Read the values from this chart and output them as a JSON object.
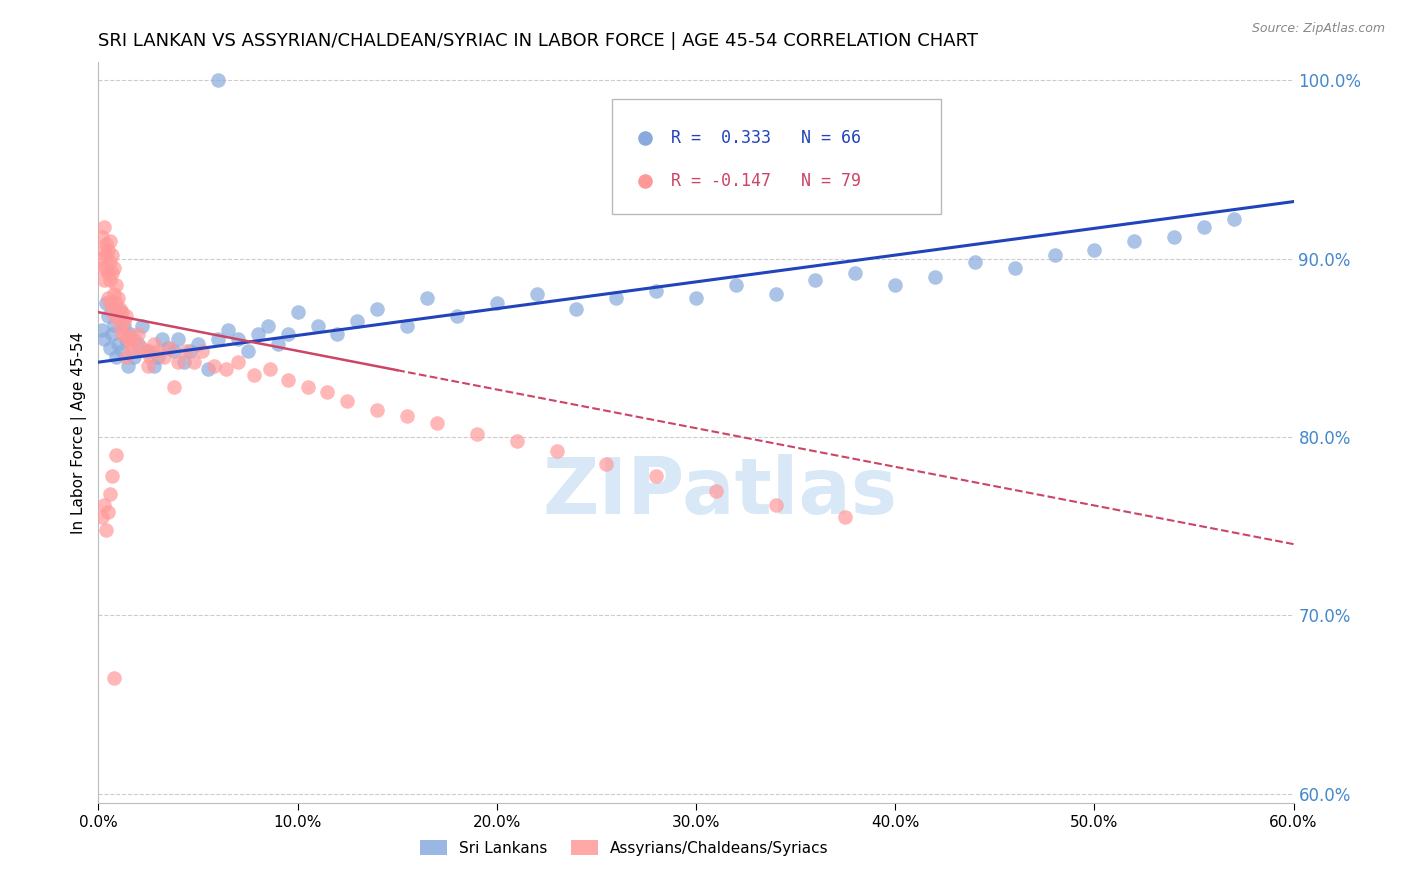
{
  "title": "SRI LANKAN VS ASSYRIAN/CHALDEAN/SYRIAC IN LABOR FORCE | AGE 45-54 CORRELATION CHART",
  "source": "Source: ZipAtlas.com",
  "ylabel": "In Labor Force | Age 45-54",
  "xlim": [
    0.0,
    0.6
  ],
  "ylim": [
    0.595,
    1.01
  ],
  "yticks_right": [
    0.6,
    0.7,
    0.8,
    0.9,
    1.0
  ],
  "legend_blue_r": "R =  0.333",
  "legend_blue_n": "N = 66",
  "legend_pink_r": "R = -0.147",
  "legend_pink_n": "N = 79",
  "label_sri": "Sri Lankans",
  "label_ass": "Assyrians/Chaldeans/Syriacs",
  "dot_color_blue": "#88AADD",
  "dot_color_pink": "#FF9999",
  "line_color_blue": "#2244BB",
  "line_color_pink": "#CC4466",
  "watermark": "ZIPatlas",
  "watermark_color": "#AACCEE",
  "title_fontsize": 13,
  "axis_label_fontsize": 11,
  "tick_fontsize": 11,
  "right_tick_color": "#4488CC",
  "grid_color": "#CCCCCC",
  "blue_scatter_x": [
    0.002,
    0.003,
    0.004,
    0.005,
    0.006,
    0.007,
    0.008,
    0.009,
    0.01,
    0.011,
    0.012,
    0.013,
    0.014,
    0.015,
    0.016,
    0.018,
    0.02,
    0.022,
    0.025,
    0.028,
    0.03,
    0.032,
    0.035,
    0.038,
    0.04,
    0.043,
    0.046,
    0.05,
    0.055,
    0.06,
    0.065,
    0.07,
    0.075,
    0.08,
    0.085,
    0.09,
    0.095,
    0.1,
    0.11,
    0.12,
    0.13,
    0.14,
    0.155,
    0.165,
    0.18,
    0.2,
    0.22,
    0.24,
    0.26,
    0.28,
    0.3,
    0.32,
    0.34,
    0.36,
    0.38,
    0.4,
    0.42,
    0.44,
    0.46,
    0.48,
    0.5,
    0.52,
    0.54,
    0.555,
    0.57,
    0.06
  ],
  "blue_scatter_y": [
    0.86,
    0.855,
    0.875,
    0.868,
    0.85,
    0.858,
    0.863,
    0.845,
    0.852,
    0.87,
    0.848,
    0.862,
    0.855,
    0.84,
    0.858,
    0.845,
    0.852,
    0.862,
    0.848,
    0.84,
    0.845,
    0.855,
    0.85,
    0.848,
    0.855,
    0.842,
    0.848,
    0.852,
    0.838,
    0.855,
    0.86,
    0.855,
    0.848,
    0.858,
    0.862,
    0.852,
    0.858,
    0.87,
    0.862,
    0.858,
    0.865,
    0.872,
    0.862,
    0.878,
    0.868,
    0.875,
    0.88,
    0.872,
    0.878,
    0.882,
    0.878,
    0.885,
    0.88,
    0.888,
    0.892,
    0.885,
    0.89,
    0.898,
    0.895,
    0.902,
    0.905,
    0.91,
    0.912,
    0.918,
    0.922,
    1.0
  ],
  "pink_scatter_x": [
    0.001,
    0.002,
    0.002,
    0.003,
    0.003,
    0.003,
    0.004,
    0.004,
    0.004,
    0.005,
    0.005,
    0.005,
    0.006,
    0.006,
    0.006,
    0.006,
    0.007,
    0.007,
    0.007,
    0.008,
    0.008,
    0.008,
    0.009,
    0.009,
    0.01,
    0.01,
    0.011,
    0.011,
    0.012,
    0.012,
    0.013,
    0.014,
    0.014,
    0.015,
    0.016,
    0.017,
    0.018,
    0.02,
    0.022,
    0.024,
    0.026,
    0.028,
    0.03,
    0.033,
    0.036,
    0.04,
    0.044,
    0.048,
    0.052,
    0.058,
    0.064,
    0.07,
    0.078,
    0.086,
    0.095,
    0.105,
    0.115,
    0.125,
    0.14,
    0.155,
    0.17,
    0.19,
    0.21,
    0.23,
    0.255,
    0.28,
    0.31,
    0.34,
    0.375,
    0.002,
    0.003,
    0.004,
    0.005,
    0.006,
    0.007,
    0.014,
    0.025,
    0.038,
    0.009
  ],
  "pink_scatter_y": [
    0.9,
    0.912,
    0.895,
    0.905,
    0.918,
    0.888,
    0.908,
    0.895,
    0.902,
    0.892,
    0.905,
    0.878,
    0.898,
    0.888,
    0.91,
    0.875,
    0.892,
    0.902,
    0.872,
    0.88,
    0.895,
    0.868,
    0.885,
    0.875,
    0.868,
    0.878,
    0.862,
    0.872,
    0.858,
    0.87,
    0.865,
    0.858,
    0.868,
    0.855,
    0.852,
    0.848,
    0.855,
    0.858,
    0.85,
    0.848,
    0.845,
    0.852,
    0.848,
    0.845,
    0.85,
    0.842,
    0.848,
    0.842,
    0.848,
    0.84,
    0.838,
    0.842,
    0.835,
    0.838,
    0.832,
    0.828,
    0.825,
    0.82,
    0.815,
    0.812,
    0.808,
    0.802,
    0.798,
    0.792,
    0.785,
    0.778,
    0.77,
    0.762,
    0.755,
    0.755,
    0.762,
    0.748,
    0.758,
    0.768,
    0.778,
    0.845,
    0.84,
    0.828,
    0.79
  ],
  "pink_outlier_x": [
    0.008
  ],
  "pink_outlier_y": [
    0.665
  ]
}
